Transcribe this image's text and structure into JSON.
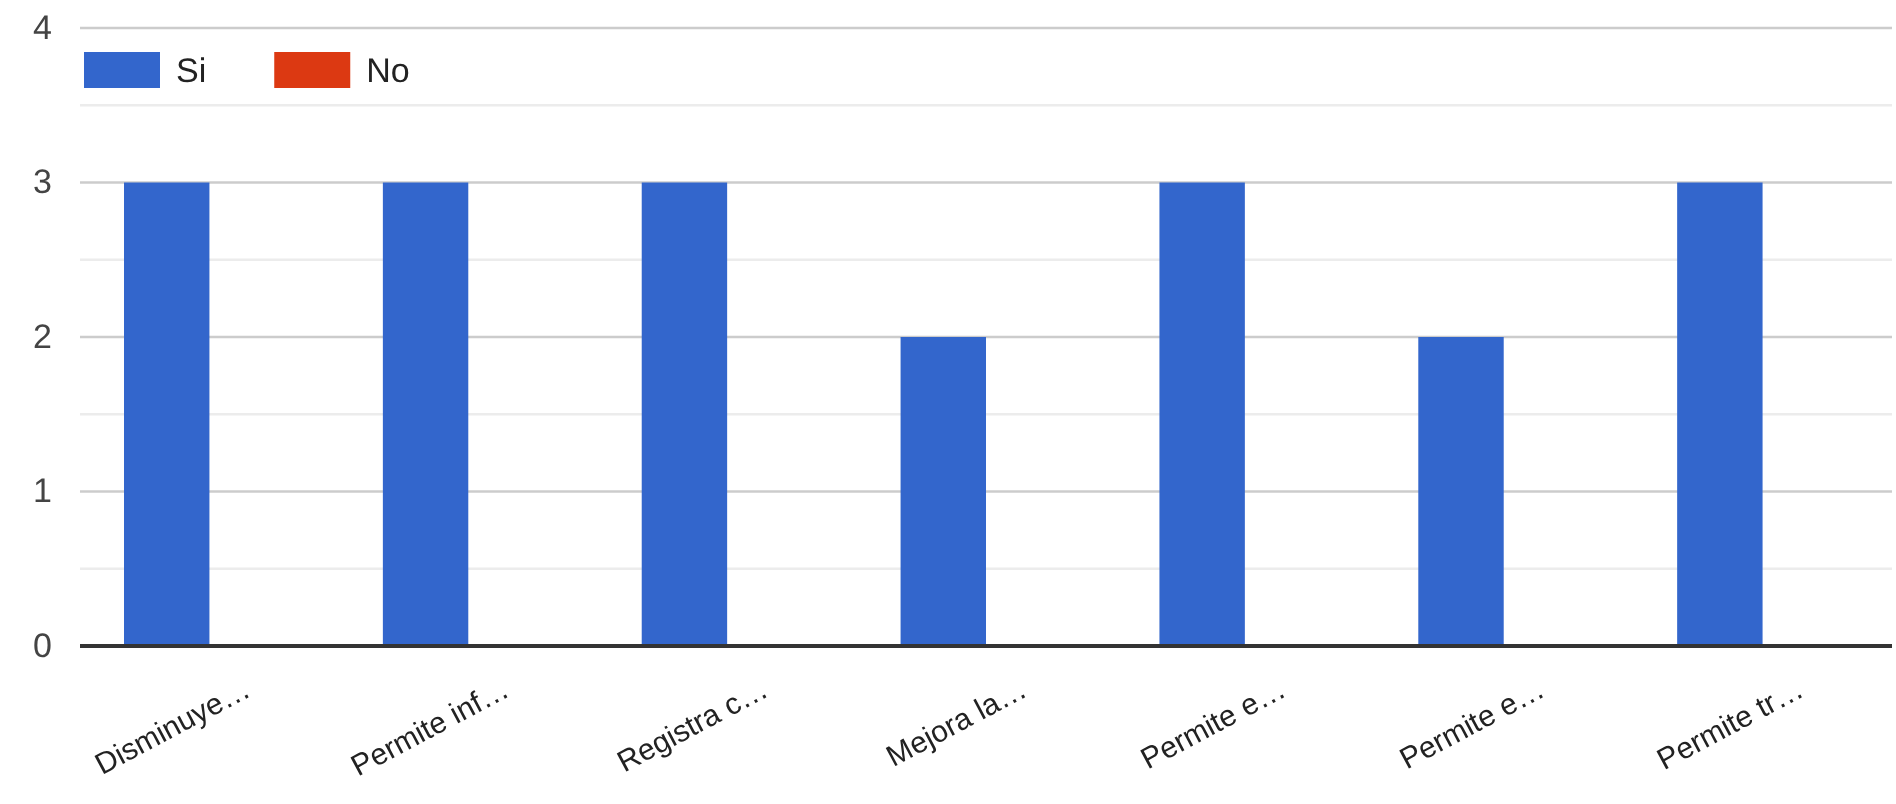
{
  "chart_data": {
    "type": "bar",
    "categories": [
      "Disminuye…",
      "Permite inf…",
      "Registra c…",
      "Mejora la…",
      "Permite e…",
      "Permite e…",
      "Permite tr…"
    ],
    "series": [
      {
        "name": "Si",
        "color": "#3366cc",
        "values": [
          3,
          3,
          3,
          2,
          3,
          2,
          3
        ]
      },
      {
        "name": "No",
        "color": "#dc3912",
        "values": [
          0,
          0,
          0,
          0,
          0,
          0,
          0
        ]
      }
    ],
    "ylim": [
      0,
      4
    ],
    "yticks": [
      0,
      {
        "value": 0.5,
        "label": null
      },
      1,
      {
        "value": 1.5,
        "label": null
      },
      2,
      {
        "value": 2.5,
        "label": null
      },
      3,
      {
        "value": 3.5,
        "label": null
      },
      4
    ],
    "grid": "y",
    "legend": "top left"
  }
}
